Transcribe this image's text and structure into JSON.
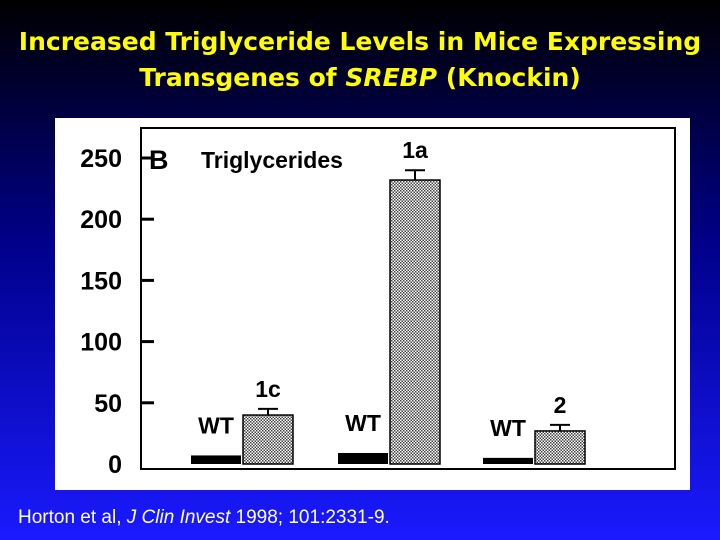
{
  "slide": {
    "title_line1": "Increased Triglyceride Levels in Mice Expressing",
    "title_line2_pre": "Transgenes of ",
    "title_line2_italic": "SREBP",
    "title_line2_post": " (Knockin)",
    "citation_pre": "Horton et al, ",
    "citation_journal": "J Clin Invest",
    "citation_post": " 1998; 101:2331-9."
  },
  "colors": {
    "title": "#ffff00",
    "background_top": "#000000",
    "background_bottom": "#1a1aff",
    "wt_bar": "#000000",
    "transgenic_bar_pattern": "stippled gray"
  },
  "chart_data": {
    "type": "bar",
    "panel_letter": "B",
    "title": "Triglycerides",
    "xlabel": "",
    "ylabel": "",
    "ylim": [
      0,
      250
    ],
    "yticks": [
      0,
      50,
      100,
      150,
      200,
      250
    ],
    "grid": false,
    "groups": [
      {
        "bars": [
          {
            "label": "WT",
            "value": 7,
            "style": "solid-black"
          },
          {
            "label": "1c",
            "value": 40,
            "error": 5,
            "style": "stippled"
          }
        ]
      },
      {
        "bars": [
          {
            "label": "WT",
            "value": 9,
            "style": "solid-black"
          },
          {
            "label": "1a",
            "value": 232,
            "error": 8,
            "style": "stippled"
          }
        ]
      },
      {
        "bars": [
          {
            "label": "WT",
            "value": 5,
            "style": "solid-black"
          },
          {
            "label": "2",
            "value": 27,
            "error": 5,
            "style": "stippled"
          }
        ]
      }
    ]
  }
}
